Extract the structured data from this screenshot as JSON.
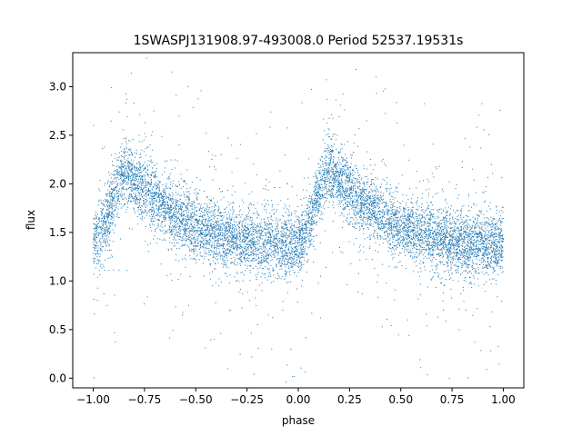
{
  "chart_data": {
    "type": "scatter",
    "title": "1SWASPJ131908.97-493008.0 Period 52537.19531s",
    "xlabel": "phase",
    "ylabel": "flux",
    "xlim": [
      -1.1,
      1.1
    ],
    "ylim": [
      -0.1,
      3.35
    ],
    "xticks": [
      -1.0,
      -0.75,
      -0.5,
      -0.25,
      0.0,
      0.25,
      0.5,
      0.75,
      1.0
    ],
    "xtick_labels": [
      "−1.00",
      "−0.75",
      "−0.50",
      "−0.25",
      "0.00",
      "0.25",
      "0.50",
      "0.75",
      "1.00"
    ],
    "yticks": [
      0.0,
      0.5,
      1.0,
      1.5,
      2.0,
      2.5,
      3.0
    ],
    "ytick_labels": [
      "0.0",
      "0.5",
      "1.0",
      "1.5",
      "2.0",
      "2.5",
      "3.0"
    ],
    "grid": false,
    "marker_color": "#1f77b4",
    "series": [
      {
        "x": [
          -1.0,
          -0.95,
          -0.9,
          -0.85,
          -0.8,
          -0.7,
          -0.6,
          -0.5,
          -0.4,
          -0.3,
          -0.2,
          -0.1,
          0.0,
          0.05,
          0.1,
          0.15,
          0.2,
          0.3,
          0.4,
          0.5,
          0.6,
          0.7,
          0.8,
          0.9,
          1.0
        ],
        "y": [
          1.38,
          1.55,
          1.85,
          2.15,
          2.05,
          1.85,
          1.68,
          1.55,
          1.48,
          1.43,
          1.4,
          1.38,
          1.38,
          1.55,
          1.9,
          2.15,
          2.05,
          1.85,
          1.68,
          1.55,
          1.48,
          1.43,
          1.4,
          1.38,
          1.37
        ]
      }
    ]
  }
}
